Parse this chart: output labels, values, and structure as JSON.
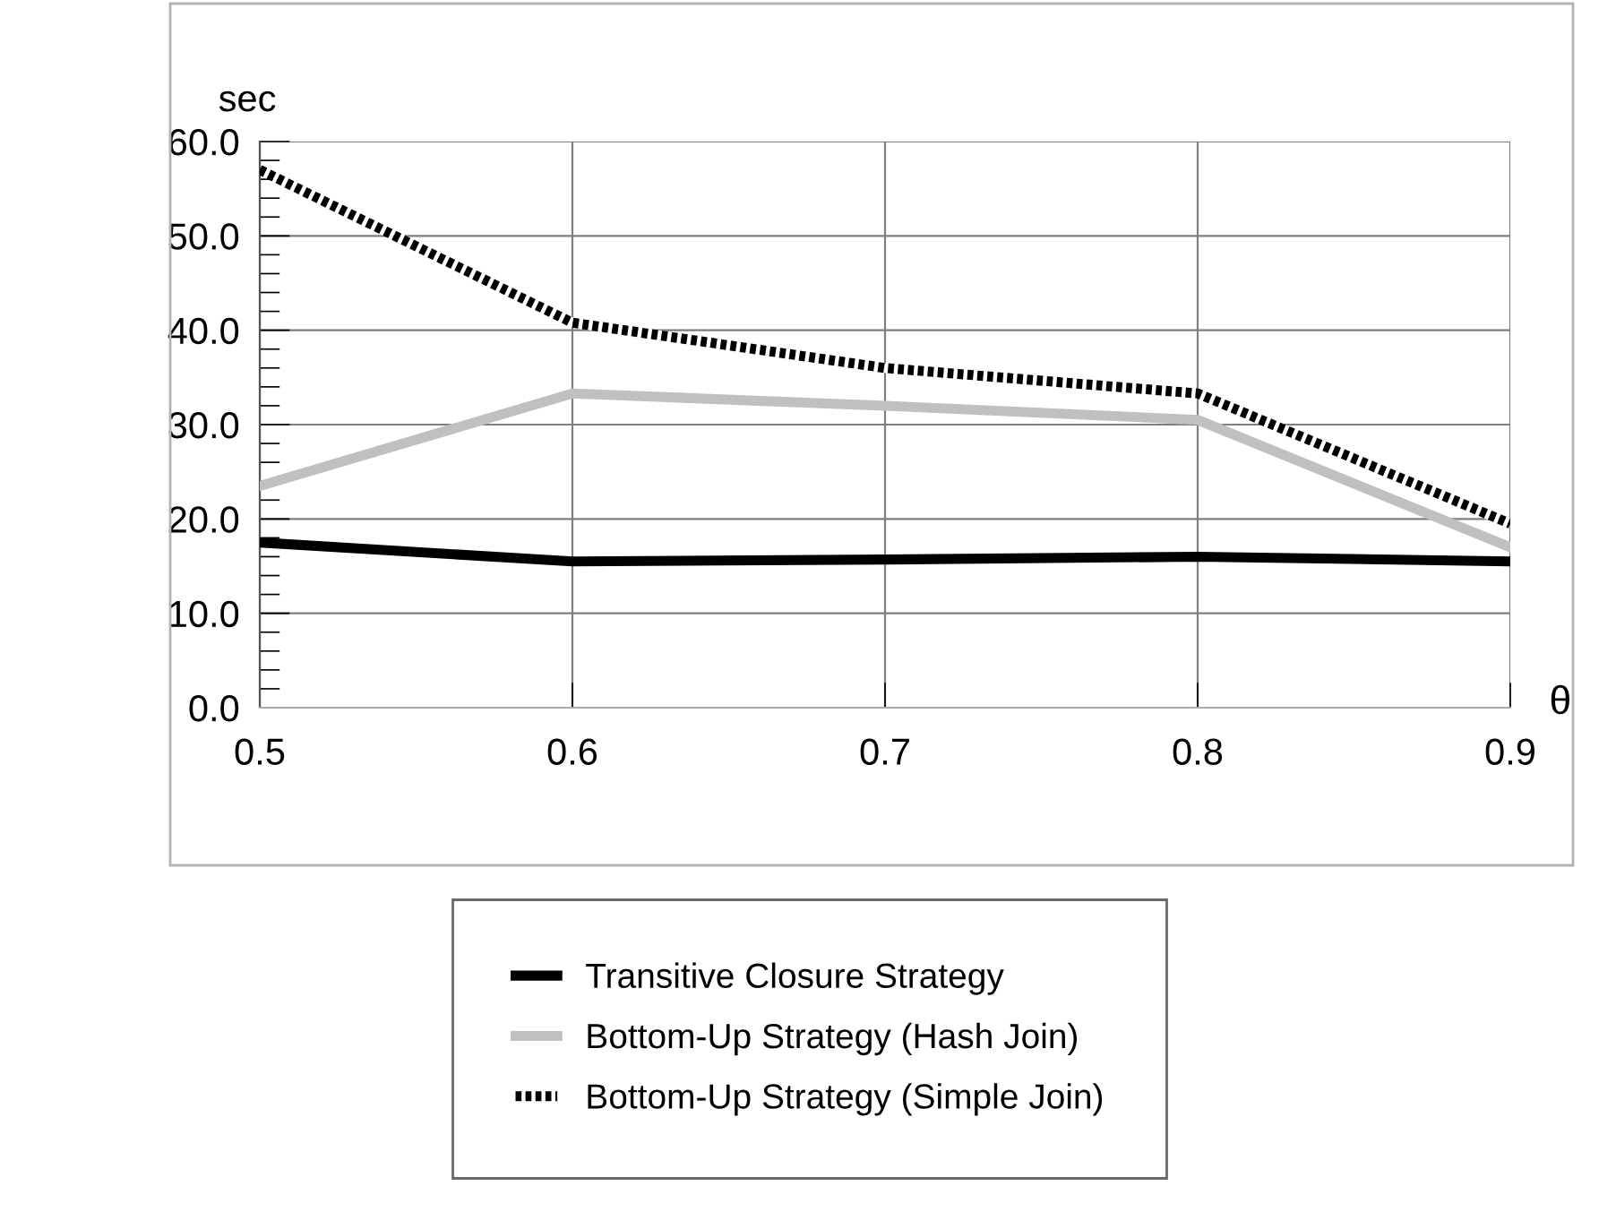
{
  "chart_data": {
    "type": "line",
    "xlabel": "θ",
    "ylabel": "sec",
    "x": [
      0.5,
      0.6,
      0.7,
      0.8,
      0.9
    ],
    "series": [
      {
        "name": "Transitive Closure Strategy",
        "color": "#000000",
        "line_style": "solid",
        "values": [
          17.5,
          15.5,
          15.7,
          16.0,
          15.5
        ]
      },
      {
        "name": "Bottom-Up Strategy (Hash Join)",
        "color": "#c0c0c0",
        "line_style": "solid",
        "values": [
          23.5,
          33.3,
          32.0,
          30.5,
          17.0
        ]
      },
      {
        "name": "Bottom-Up Strategy (Simple Join)",
        "color": "#000000",
        "line_style": "dotted",
        "values": [
          57.0,
          40.8,
          36.0,
          33.3,
          19.5
        ]
      }
    ],
    "xlim": [
      0.5,
      0.9
    ],
    "xticks": [
      {
        "value": 0.5,
        "label": "0.5"
      },
      {
        "value": 0.6,
        "label": "0.6"
      },
      {
        "value": 0.7,
        "label": "0.7"
      },
      {
        "value": 0.8,
        "label": "0.8"
      },
      {
        "value": 0.9,
        "label": "0.9"
      }
    ],
    "ylim": [
      0,
      60
    ],
    "yticks": [
      {
        "value": 0,
        "label": "0.0"
      },
      {
        "value": 10,
        "label": "10.0"
      },
      {
        "value": 20,
        "label": "20.0"
      },
      {
        "value": 30,
        "label": "30.0"
      },
      {
        "value": 40,
        "label": "40.0"
      },
      {
        "value": 50,
        "label": "50.0"
      },
      {
        "value": 60,
        "label": "60.0"
      }
    ],
    "grid": true,
    "legend": "bottom",
    "marker": "none"
  }
}
